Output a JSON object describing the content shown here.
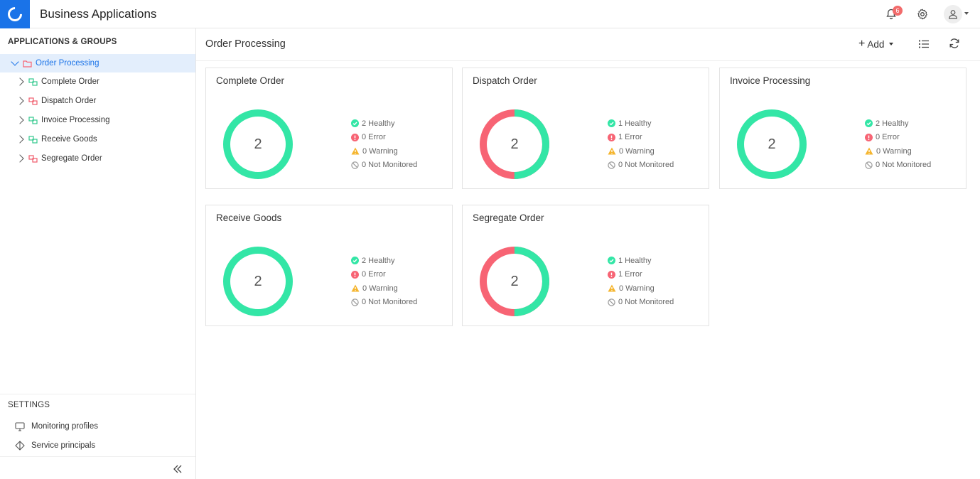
{
  "header": {
    "title": "Business Applications",
    "notification_count": "6",
    "icons": {
      "logo": "app-logo-icon",
      "bell": "bell-icon",
      "settings": "gear-icon",
      "user": "user-icon"
    }
  },
  "sidebar": {
    "section_title": "APPLICATIONS & GROUPS",
    "group": {
      "label": "Order Processing"
    },
    "items": [
      {
        "label": "Complete Order",
        "status": "healthy"
      },
      {
        "label": "Dispatch Order",
        "status": "error"
      },
      {
        "label": "Invoice Processing",
        "status": "healthy"
      },
      {
        "label": "Receive Goods",
        "status": "healthy"
      },
      {
        "label": "Segregate Order",
        "status": "error"
      }
    ],
    "settings_title": "SETTINGS",
    "settings_items": [
      {
        "label": "Monitoring profiles",
        "icon": "monitor-icon"
      },
      {
        "label": "Service principals",
        "icon": "principal-icon"
      }
    ]
  },
  "main": {
    "title": "Order Processing",
    "add_label": "Add",
    "cards": [
      {
        "title": "Complete Order",
        "total": "2",
        "healthy": 2,
        "error": 0,
        "healthy_label": "2 Healthy",
        "error_label": "0 Error",
        "warning_label": "0 Warning",
        "not_monitored_label": "0 Not Monitored"
      },
      {
        "title": "Dispatch Order",
        "total": "2",
        "healthy": 1,
        "error": 1,
        "healthy_label": "1 Healthy",
        "error_label": "1 Error",
        "warning_label": "0 Warning",
        "not_monitored_label": "0 Not Monitored"
      },
      {
        "title": "Invoice Processing",
        "total": "2",
        "healthy": 2,
        "error": 0,
        "healthy_label": "2 Healthy",
        "error_label": "0 Error",
        "warning_label": "0 Warning",
        "not_monitored_label": "0 Not Monitored"
      },
      {
        "title": "Receive Goods",
        "total": "2",
        "healthy": 2,
        "error": 0,
        "healthy_label": "2 Healthy",
        "error_label": "0 Error",
        "warning_label": "0 Warning",
        "not_monitored_label": "0 Not Monitored"
      },
      {
        "title": "Segregate Order",
        "total": "2",
        "healthy": 1,
        "error": 1,
        "healthy_label": "1 Healthy",
        "error_label": "1 Error",
        "warning_label": "0 Warning",
        "not_monitored_label": "0 Not Monitored"
      }
    ]
  },
  "colors": {
    "accent": "#1a73e8",
    "healthy": "#33e6a6",
    "error": "#f76474",
    "warning": "#f5b52e",
    "muted": "#999999"
  }
}
